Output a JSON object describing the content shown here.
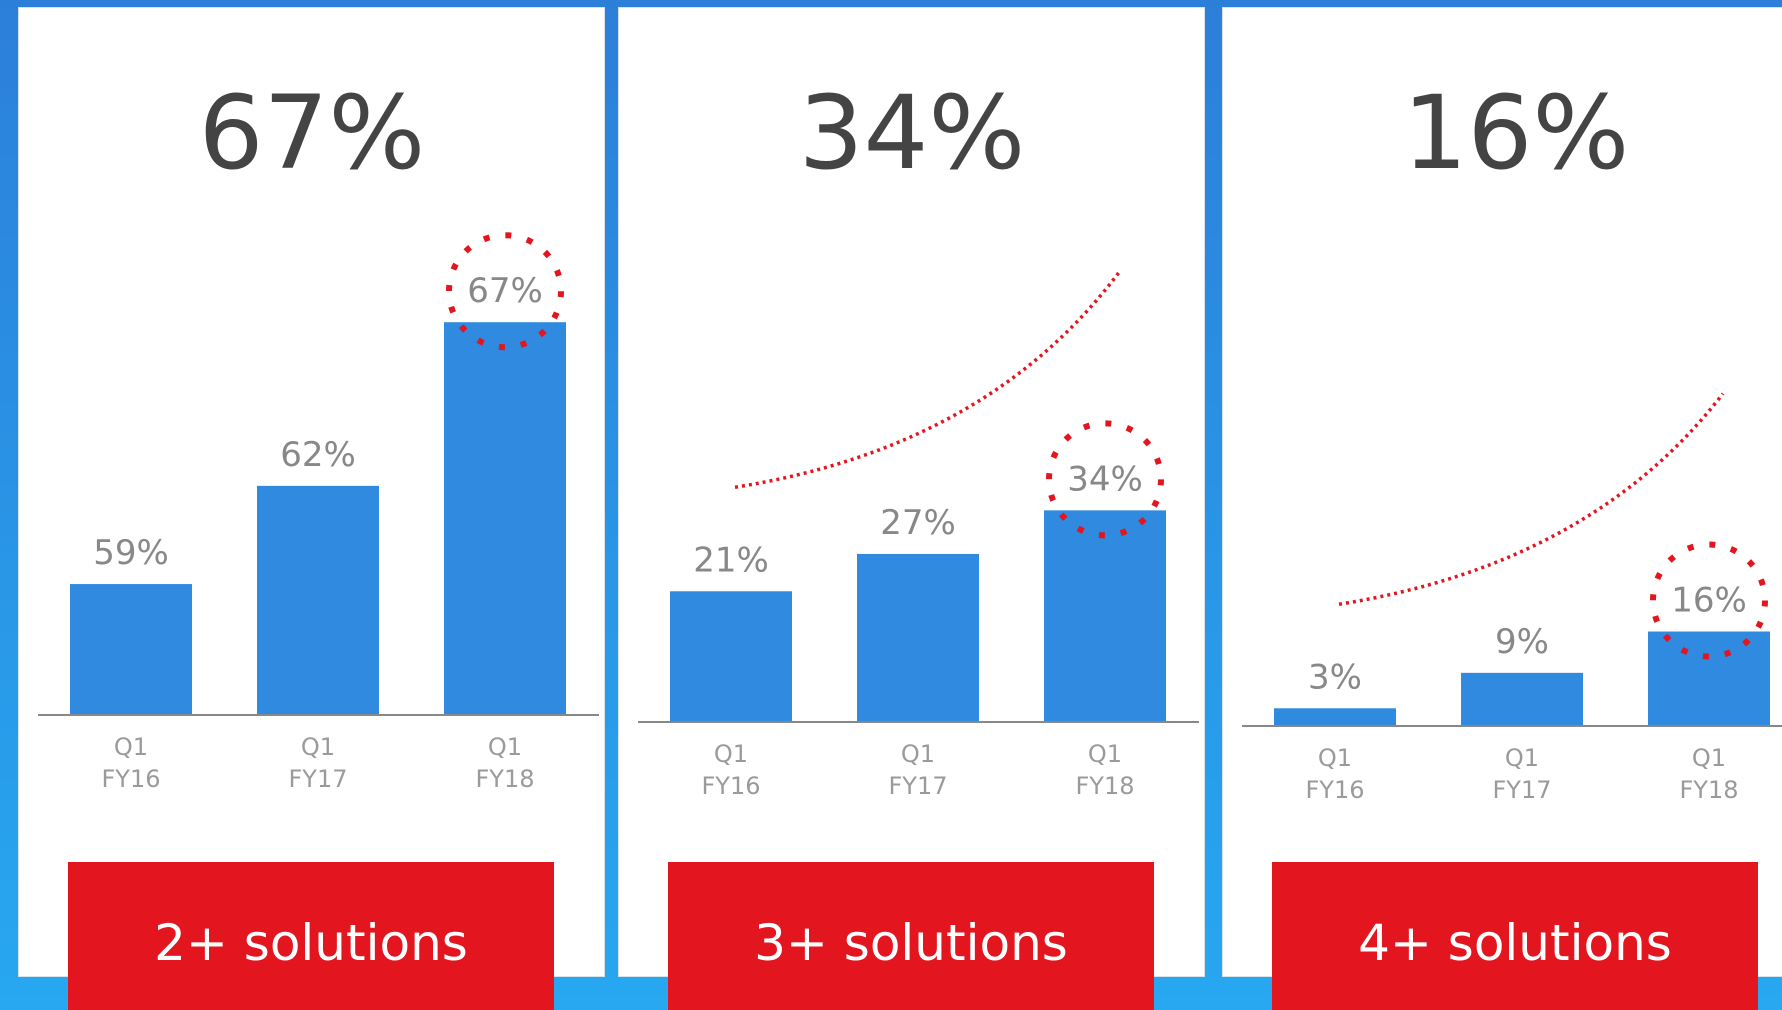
{
  "chart_data": [
    {
      "type": "bar",
      "title": "67%",
      "categories": [
        "Q1 FY16",
        "Q1 FY17",
        "Q1 FY18"
      ],
      "values": [
        59,
        62,
        67
      ],
      "value_labels": [
        "59%",
        "62%",
        "67%"
      ],
      "color": "#2f8ae0",
      "ylim": [
        55,
        70
      ],
      "trend_line": false,
      "footer_label": "2+ solutions"
    },
    {
      "type": "bar",
      "title": "34%",
      "categories": [
        "Q1 FY16",
        "Q1 FY17",
        "Q1 FY18"
      ],
      "values": [
        21,
        27,
        34
      ],
      "value_labels": [
        "21%",
        "27%",
        "34%"
      ],
      "color": "#2f8ae0",
      "ylim": [
        0,
        80
      ],
      "trend_line": true,
      "footer_label": "3+ solutions"
    },
    {
      "type": "bar",
      "title": "16%",
      "categories": [
        "Q1 FY16",
        "Q1 FY17",
        "Q1 FY18"
      ],
      "values": [
        3,
        9,
        16
      ],
      "value_labels": [
        "3%",
        "9%",
        "16%"
      ],
      "color": "#2f8ae0",
      "ylim": [
        0,
        85
      ],
      "trend_line": true,
      "footer_label": "4+ solutions"
    }
  ]
}
